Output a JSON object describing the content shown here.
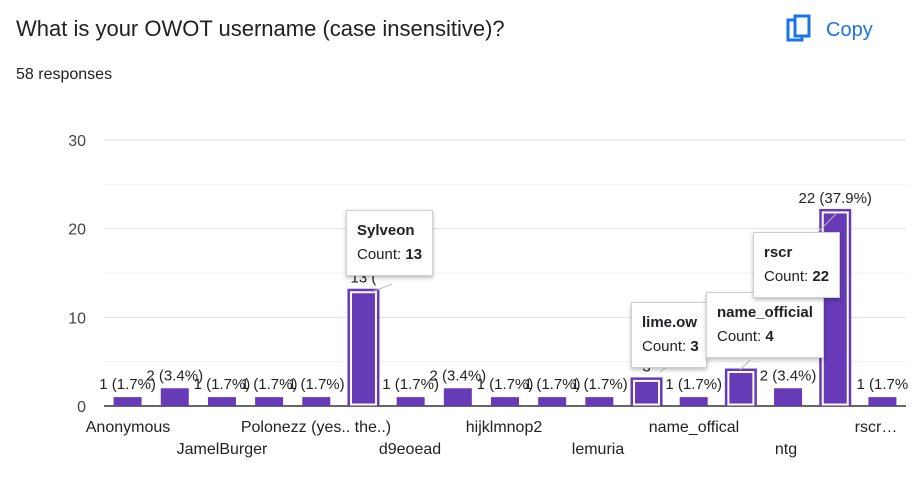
{
  "header": {
    "title": "What is your OWOT username (case insensitive)?",
    "responses": "58 responses",
    "copy_label": "Copy"
  },
  "colors": {
    "bar": "#673ab7",
    "accent": "#1a73e8",
    "grid": "#e0e0e0",
    "axis": "#333333"
  },
  "tooltips": [
    {
      "name": "Sylveon",
      "count_label": "Count:",
      "count": "13"
    },
    {
      "name": "lime.ow",
      "count_label": "Count:",
      "count": "3"
    },
    {
      "name": "name_official",
      "count_label": "Count:",
      "count": "4"
    },
    {
      "name": "rscr",
      "count_label": "Count:",
      "count": "22"
    }
  ],
  "chart_data": {
    "type": "bar",
    "ylim": [
      0,
      30
    ],
    "yticks": [
      0,
      10,
      20,
      30
    ],
    "grid": true,
    "values": [
      1,
      2,
      1,
      1,
      1,
      13,
      1,
      2,
      1,
      1,
      1,
      3,
      1,
      4,
      2,
      22,
      1
    ],
    "data_labels": [
      "1 (1.7%)",
      "2 (3.4%)",
      "1 (1.7%)",
      "1 (1.7%)",
      "1 (1.7%)",
      "13 (",
      "1 (1.7%)",
      "2 (3.4%)",
      "1 (1.7%)",
      "1 (1.7%)",
      "1 (1.7%)",
      "3",
      "1 (1.7%)",
      "",
      "2 (3.4%)",
      "22 (37.9%)",
      "1 (1.7%"
    ],
    "x_tick_labels": [
      "Anonymous",
      "JamelBurger",
      "Polonezz (yes.. the..)",
      "d9eoead",
      "hijklmnop2",
      "lemuria",
      "name_offical",
      "ntg",
      "rscr…"
    ]
  }
}
